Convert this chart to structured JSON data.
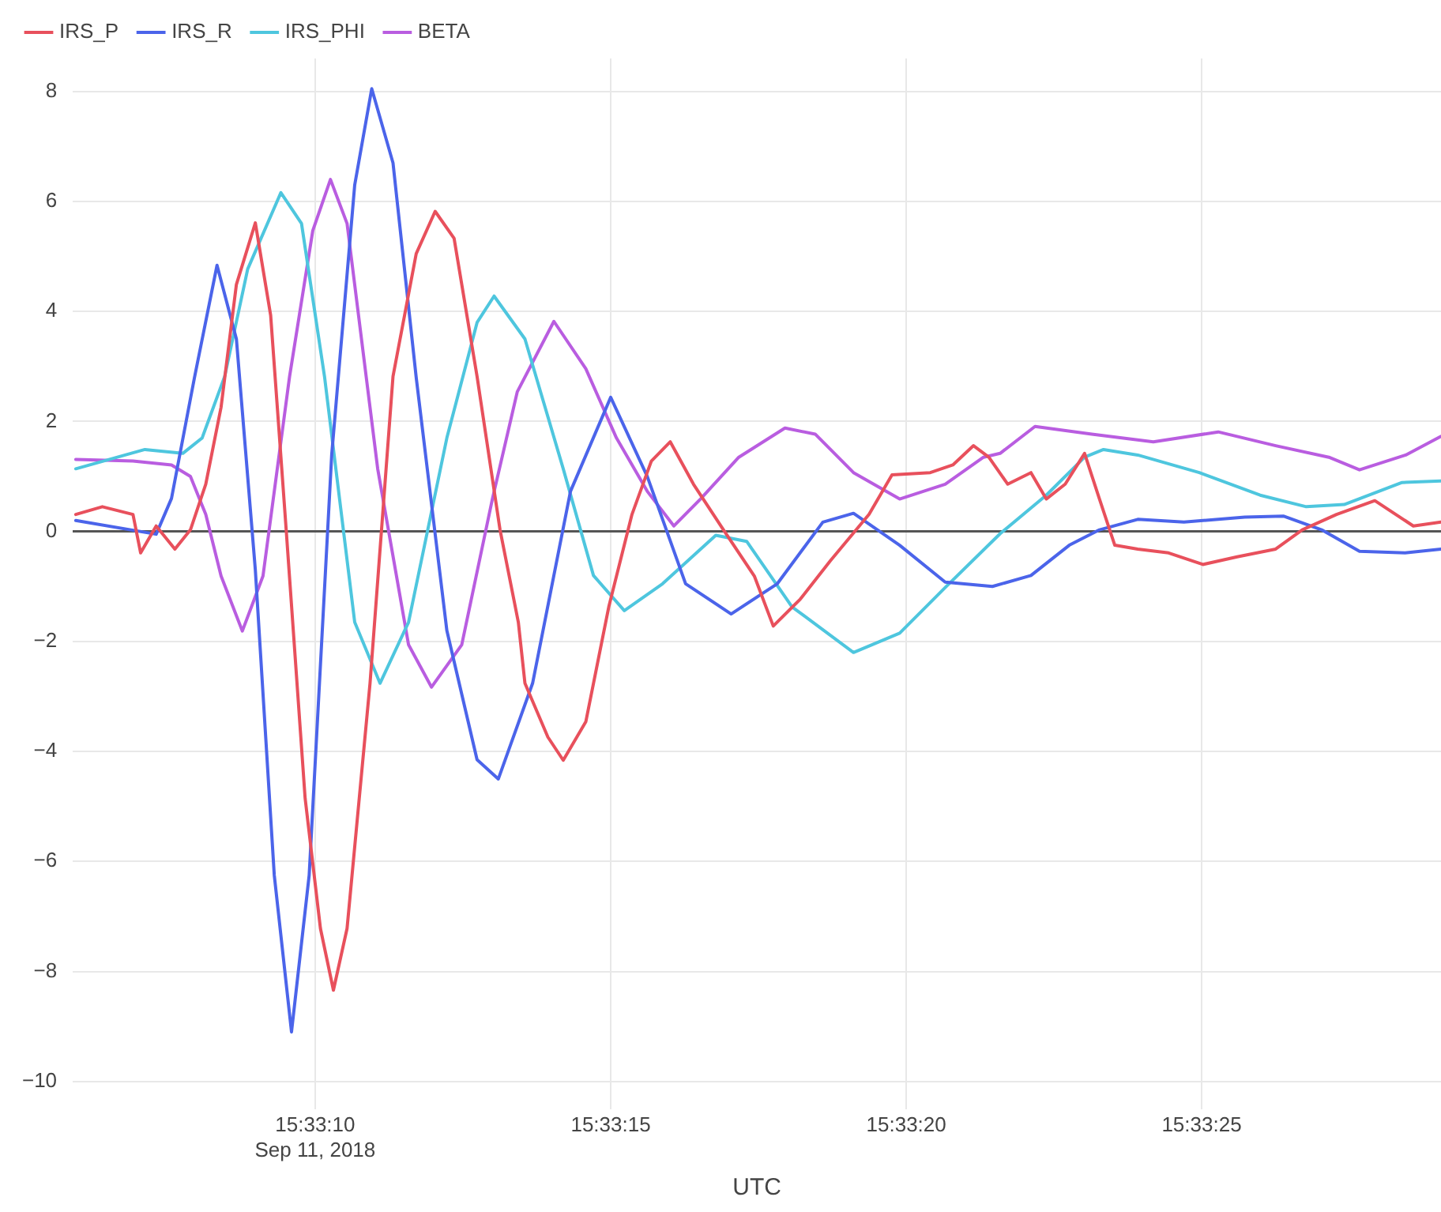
{
  "chart_data": {
    "type": "line",
    "xlabel": "UTC",
    "xlim": [
      15.551639,
      15.558069
    ],
    "ylim": [
      -10.5,
      8.6
    ],
    "xticks": [
      {
        "value": 15.552778,
        "label": "15:33:10\nSep 11, 2018"
      },
      {
        "value": 15.554167,
        "label": "15:33:15"
      },
      {
        "value": 15.555556,
        "label": "15:33:20"
      },
      {
        "value": 15.556944,
        "label": "15:33:25"
      }
    ],
    "yticks": [
      {
        "value": -10,
        "label": "−10"
      },
      {
        "value": -8,
        "label": "−8"
      },
      {
        "value": -6,
        "label": "−6"
      },
      {
        "value": -4,
        "label": "−4"
      },
      {
        "value": -2,
        "label": "−2"
      },
      0,
      2,
      4,
      6,
      8
    ],
    "grid": true,
    "legend": "top left",
    "marker": "none",
    "line_style": "solid",
    "series": [
      {
        "name": "IRS_P",
        "color": "#e8505c",
        "x": [
          15.551653,
          15.551778,
          15.551922,
          15.551958,
          15.552031,
          15.552119,
          15.552192,
          15.552264,
          15.552336,
          15.552408,
          15.552497,
          15.552569,
          15.552642,
          15.552731,
          15.552803,
          15.552864,
          15.552928,
          15.553036,
          15.553144,
          15.553253,
          15.553342,
          15.553431,
          15.553539,
          15.553647,
          15.553733,
          15.553764,
          15.553872,
          15.553944,
          15.55405,
          15.554158,
          15.554267,
          15.554358,
          15.554447,
          15.554556,
          15.554697,
          15.554842,
          15.554931,
          15.555058,
          15.5552,
          15.555381,
          15.555489,
          15.555669,
          15.555775,
          15.555872,
          15.555944,
          15.556033,
          15.556142,
          15.556214,
          15.556303,
          15.556394,
          15.556464,
          15.556536,
          15.556644,
          15.556789,
          15.55695,
          15.557111,
          15.557292,
          15.557417,
          15.557578,
          15.557758,
          15.557939,
          15.558069
        ],
        "values": [
          0.31,
          0.45,
          0.31,
          -0.39,
          0.1,
          -0.32,
          0.03,
          0.86,
          2.26,
          4.49,
          5.61,
          3.93,
          0.03,
          -4.85,
          -7.22,
          -8.34,
          -7.22,
          -2.76,
          2.82,
          5.05,
          5.82,
          5.33,
          2.82,
          0.03,
          -1.65,
          -2.76,
          -3.74,
          -4.16,
          -3.46,
          -1.37,
          0.31,
          1.28,
          1.63,
          0.86,
          0.03,
          -0.81,
          -1.72,
          -1.23,
          -0.53,
          0.31,
          1.03,
          1.07,
          1.21,
          1.56,
          1.35,
          0.86,
          1.07,
          0.59,
          0.86,
          1.42,
          0.59,
          -0.25,
          -0.32,
          -0.39,
          -0.6,
          -0.46,
          -0.32,
          0.03,
          0.31,
          0.56,
          0.1,
          0.17
        ]
      },
      {
        "name": "IRS_R",
        "color": "#4b64ea",
        "x": [
          15.551653,
          15.552031,
          15.552103,
          15.552211,
          15.552317,
          15.552408,
          15.552497,
          15.552586,
          15.552667,
          15.55275,
          15.552856,
          15.552964,
          15.553044,
          15.553144,
          15.553253,
          15.553397,
          15.553539,
          15.553639,
          15.5538,
          15.553978,
          15.554167,
          15.554339,
          15.554519,
          15.554733,
          15.55495,
          15.555164,
          15.555308,
          15.555525,
          15.555739,
          15.555961,
          15.556142,
          15.556322,
          15.556464,
          15.556644,
          15.556861,
          15.557147,
          15.557328,
          15.557508,
          15.557686,
          15.5579,
          15.558069
        ],
        "values": [
          0.2,
          -0.05,
          0.6,
          2.8,
          4.84,
          3.5,
          -0.7,
          -6.25,
          -9.1,
          -6.25,
          1.4,
          6.3,
          8.05,
          6.7,
          2.8,
          -1.8,
          -4.15,
          -4.5,
          -2.76,
          0.73,
          2.44,
          1.0,
          -0.95,
          -1.5,
          -0.95,
          0.17,
          0.33,
          -0.25,
          -0.92,
          -1.0,
          -0.8,
          -0.25,
          0.03,
          0.22,
          0.17,
          0.26,
          0.28,
          0.03,
          -0.36,
          -0.39,
          -0.32
        ]
      },
      {
        "name": "IRS_PHI",
        "color": "#4ec6de",
        "x": [
          15.551653,
          15.551978,
          15.552156,
          15.552247,
          15.552353,
          15.552461,
          15.552617,
          15.552714,
          15.552822,
          15.552964,
          15.553083,
          15.553217,
          15.553397,
          15.553539,
          15.553619,
          15.553764,
          15.553944,
          15.554086,
          15.554231,
          15.554411,
          15.554661,
          15.554806,
          15.555019,
          15.555308,
          15.555525,
          15.555739,
          15.555997,
          15.556214,
          15.556394,
          15.556483,
          15.556644,
          15.556933,
          15.557219,
          15.557436,
          15.557614,
          15.557886,
          15.558069
        ],
        "values": [
          1.14,
          1.49,
          1.42,
          1.7,
          2.82,
          4.77,
          6.16,
          5.6,
          2.82,
          -1.65,
          -2.76,
          -1.65,
          1.7,
          3.8,
          4.28,
          3.5,
          1.14,
          -0.8,
          -1.44,
          -0.95,
          -0.07,
          -0.18,
          -1.37,
          -2.2,
          -1.85,
          -1.02,
          -0.04,
          0.66,
          1.35,
          1.49,
          1.39,
          1.07,
          0.66,
          0.45,
          0.49,
          0.89,
          0.92
        ]
      },
      {
        "name": "BETA",
        "color": "#b95de0",
        "x": [
          15.551653,
          15.551922,
          15.552103,
          15.552192,
          15.552264,
          15.552336,
          15.552436,
          15.552533,
          15.552658,
          15.552767,
          15.55285,
          15.552928,
          15.553072,
          15.553217,
          15.553325,
          15.553467,
          15.553611,
          15.553728,
          15.5539,
          15.55405,
          15.554194,
          15.554339,
          15.554464,
          15.554589,
          15.554769,
          15.554986,
          15.555128,
          15.555308,
          15.555525,
          15.555739,
          15.555919,
          15.555997,
          15.556161,
          15.556428,
          15.556717,
          15.557022,
          15.557292,
          15.557542,
          15.557686,
          15.557903,
          15.558069
        ],
        "values": [
          1.31,
          1.28,
          1.21,
          1.0,
          0.31,
          -0.81,
          -1.81,
          -0.81,
          2.82,
          5.47,
          6.4,
          5.6,
          1.14,
          -2.06,
          -2.83,
          -2.06,
          0.59,
          2.54,
          3.82,
          2.96,
          1.7,
          0.73,
          0.1,
          0.59,
          1.35,
          1.88,
          1.77,
          1.07,
          0.59,
          0.86,
          1.35,
          1.42,
          1.91,
          1.77,
          1.63,
          1.81,
          1.56,
          1.35,
          1.12,
          1.39,
          1.73
        ]
      }
    ]
  }
}
